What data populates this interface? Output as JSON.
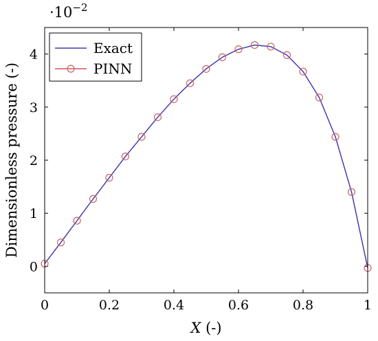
{
  "chart_data": {
    "type": "line",
    "title": "",
    "xlabel": "X (-)",
    "ylabel": "Dimensionless pressure (-)",
    "y_multiplier": {
      "base": "·10",
      "exponent": "−2"
    },
    "xlim": [
      0,
      1
    ],
    "ylim": [
      -0.5,
      4.5
    ],
    "xticks": [
      0,
      0.2,
      0.4,
      0.6,
      0.8,
      1
    ],
    "xtick_labels": [
      "0",
      "0.2",
      "0.4",
      "0.6",
      "0.8",
      "1"
    ],
    "yticks": [
      0,
      1,
      2,
      3,
      4
    ],
    "ytick_labels": [
      "0",
      "1",
      "2",
      "3",
      "4"
    ],
    "grid": false,
    "legend_position": "top-left",
    "colors": {
      "exact": "#3c3cb4",
      "pinn": "#c8323c",
      "pinn_marker": "#c86464"
    },
    "series": [
      {
        "name": "Exact",
        "style": "line",
        "x": [
          0,
          0.05,
          0.1,
          0.15,
          0.2,
          0.25,
          0.3,
          0.35,
          0.4,
          0.45,
          0.5,
          0.55,
          0.6,
          0.65,
          0.7,
          0.75,
          0.8,
          0.85,
          0.9,
          0.95,
          1
        ],
        "values": [
          0.05,
          0.45,
          0.86,
          1.27,
          1.67,
          2.07,
          2.44,
          2.81,
          3.15,
          3.45,
          3.72,
          3.94,
          4.09,
          4.17,
          4.14,
          3.98,
          3.67,
          3.18,
          2.44,
          1.4,
          -0.03
        ]
      },
      {
        "name": "PINN",
        "style": "line+circle-markers",
        "x": [
          0,
          0.05,
          0.1,
          0.15,
          0.2,
          0.25,
          0.3,
          0.35,
          0.4,
          0.45,
          0.5,
          0.55,
          0.6,
          0.65,
          0.7,
          0.75,
          0.8,
          0.85,
          0.9,
          0.95,
          1
        ],
        "values": [
          0.05,
          0.45,
          0.86,
          1.27,
          1.67,
          2.07,
          2.44,
          2.81,
          3.15,
          3.45,
          3.72,
          3.94,
          4.09,
          4.17,
          4.14,
          3.98,
          3.67,
          3.18,
          2.44,
          1.4,
          -0.03
        ]
      }
    ]
  }
}
